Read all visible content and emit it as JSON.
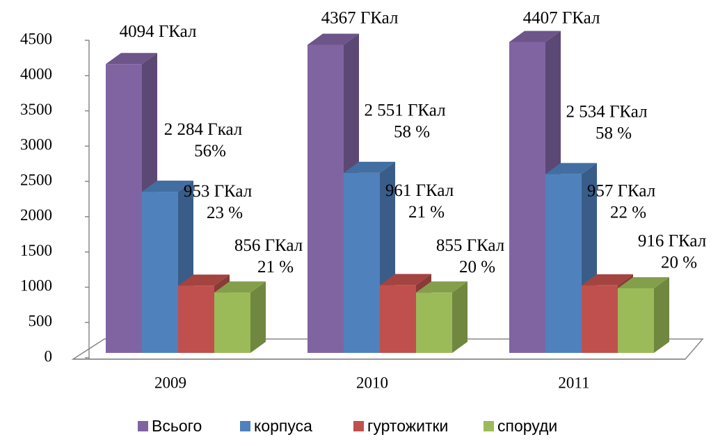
{
  "chart_data": {
    "type": "bar3d",
    "categories": [
      "2009",
      "2010",
      "2011"
    ],
    "ylim": [
      0,
      4500
    ],
    "yticks": [
      0,
      500,
      1000,
      1500,
      2000,
      2500,
      3000,
      3500,
      4000,
      4500
    ],
    "legend": "bottom",
    "series": [
      {
        "name": "Всього",
        "color": "#8064a2",
        "values": [
          4094,
          4367,
          4407
        ],
        "value_labels": [
          "4094 ГКал",
          "4367 ГКал",
          "4407 ГКал"
        ]
      },
      {
        "name": "корпуса",
        "color": "#4f81bd",
        "values": [
          2284,
          2551,
          2534
        ],
        "value_labels": [
          "2 284 Гкал",
          "2 551 ГКал",
          "2 534 ГКал"
        ],
        "share_labels": [
          "56%",
          "58 %",
          "58 %"
        ]
      },
      {
        "name": "гуртожитки",
        "color": "#c0504d",
        "values": [
          953,
          961,
          957
        ],
        "value_labels": [
          "953 ГКал",
          "961 ГКал",
          "957 ГКал"
        ],
        "share_labels": [
          "23 %",
          "21 %",
          "22 %"
        ]
      },
      {
        "name": "споруди",
        "color": "#9bbb59",
        "values": [
          856,
          855,
          916
        ],
        "value_labels": [
          "856 ГКал",
          "855 ГКал",
          "916 ГКал"
        ],
        "share_labels": [
          "21 %",
          "20 %",
          "20 %"
        ]
      }
    ]
  }
}
